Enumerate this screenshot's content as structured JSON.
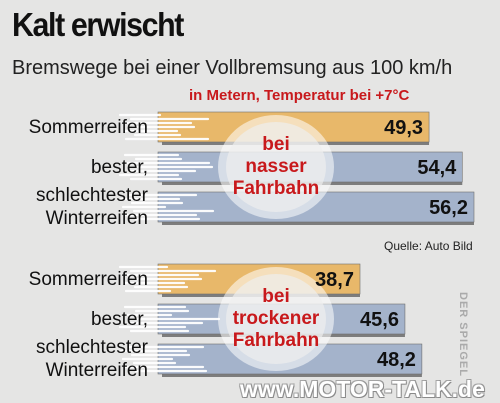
{
  "header": {
    "title": "Kalt erwischt",
    "subtitle": "Bremswege bei einer Vollbremsung aus 100 km/h",
    "unit_note": "in Metern, Temperatur bei +7°C"
  },
  "source": "Quelle: Auto Bild",
  "watermarks": {
    "side": "DER SPIEGEL",
    "bottom": "www.MOTOR-TALK.de"
  },
  "colors": {
    "summer": "#e8b86a",
    "winter": "#a4b3cb",
    "streaks": "#ffffff",
    "accent": "#c8191c",
    "background": "#e5e5e4"
  },
  "chart_data": {
    "type": "bar",
    "orientation": "horizontal",
    "title": "Kalt erwischt",
    "subtitle": "Bremswege bei einer Vollbremsung aus 100 km/h",
    "unit": "in Metern, Temperatur bei +7°C",
    "groups": [
      {
        "label_lines": [
          "bei",
          "nasser",
          "Fahrbahn"
        ],
        "items": [
          {
            "category_lines": [
              "Sommerreifen"
            ],
            "value": 49.3,
            "value_label": "49,3",
            "kind": "summer"
          },
          {
            "category_lines": [
              "bester,"
            ],
            "value": 54.4,
            "value_label": "54,4",
            "kind": "winter"
          },
          {
            "category_lines": [
              "schlechtester",
              "Winterreifen"
            ],
            "value": 56.2,
            "value_label": "56,2",
            "kind": "winter"
          }
        ]
      },
      {
        "label_lines": [
          "bei",
          "trockener",
          "Fahrbahn"
        ],
        "items": [
          {
            "category_lines": [
              "Sommerreifen"
            ],
            "value": 38.7,
            "value_label": "38,7",
            "kind": "summer"
          },
          {
            "category_lines": [
              "bester,"
            ],
            "value": 45.6,
            "value_label": "45,6",
            "kind": "winter"
          },
          {
            "category_lines": [
              "schlechtester",
              "Winterreifen"
            ],
            "value": 48.2,
            "value_label": "48,2",
            "kind": "winter"
          }
        ]
      }
    ]
  }
}
